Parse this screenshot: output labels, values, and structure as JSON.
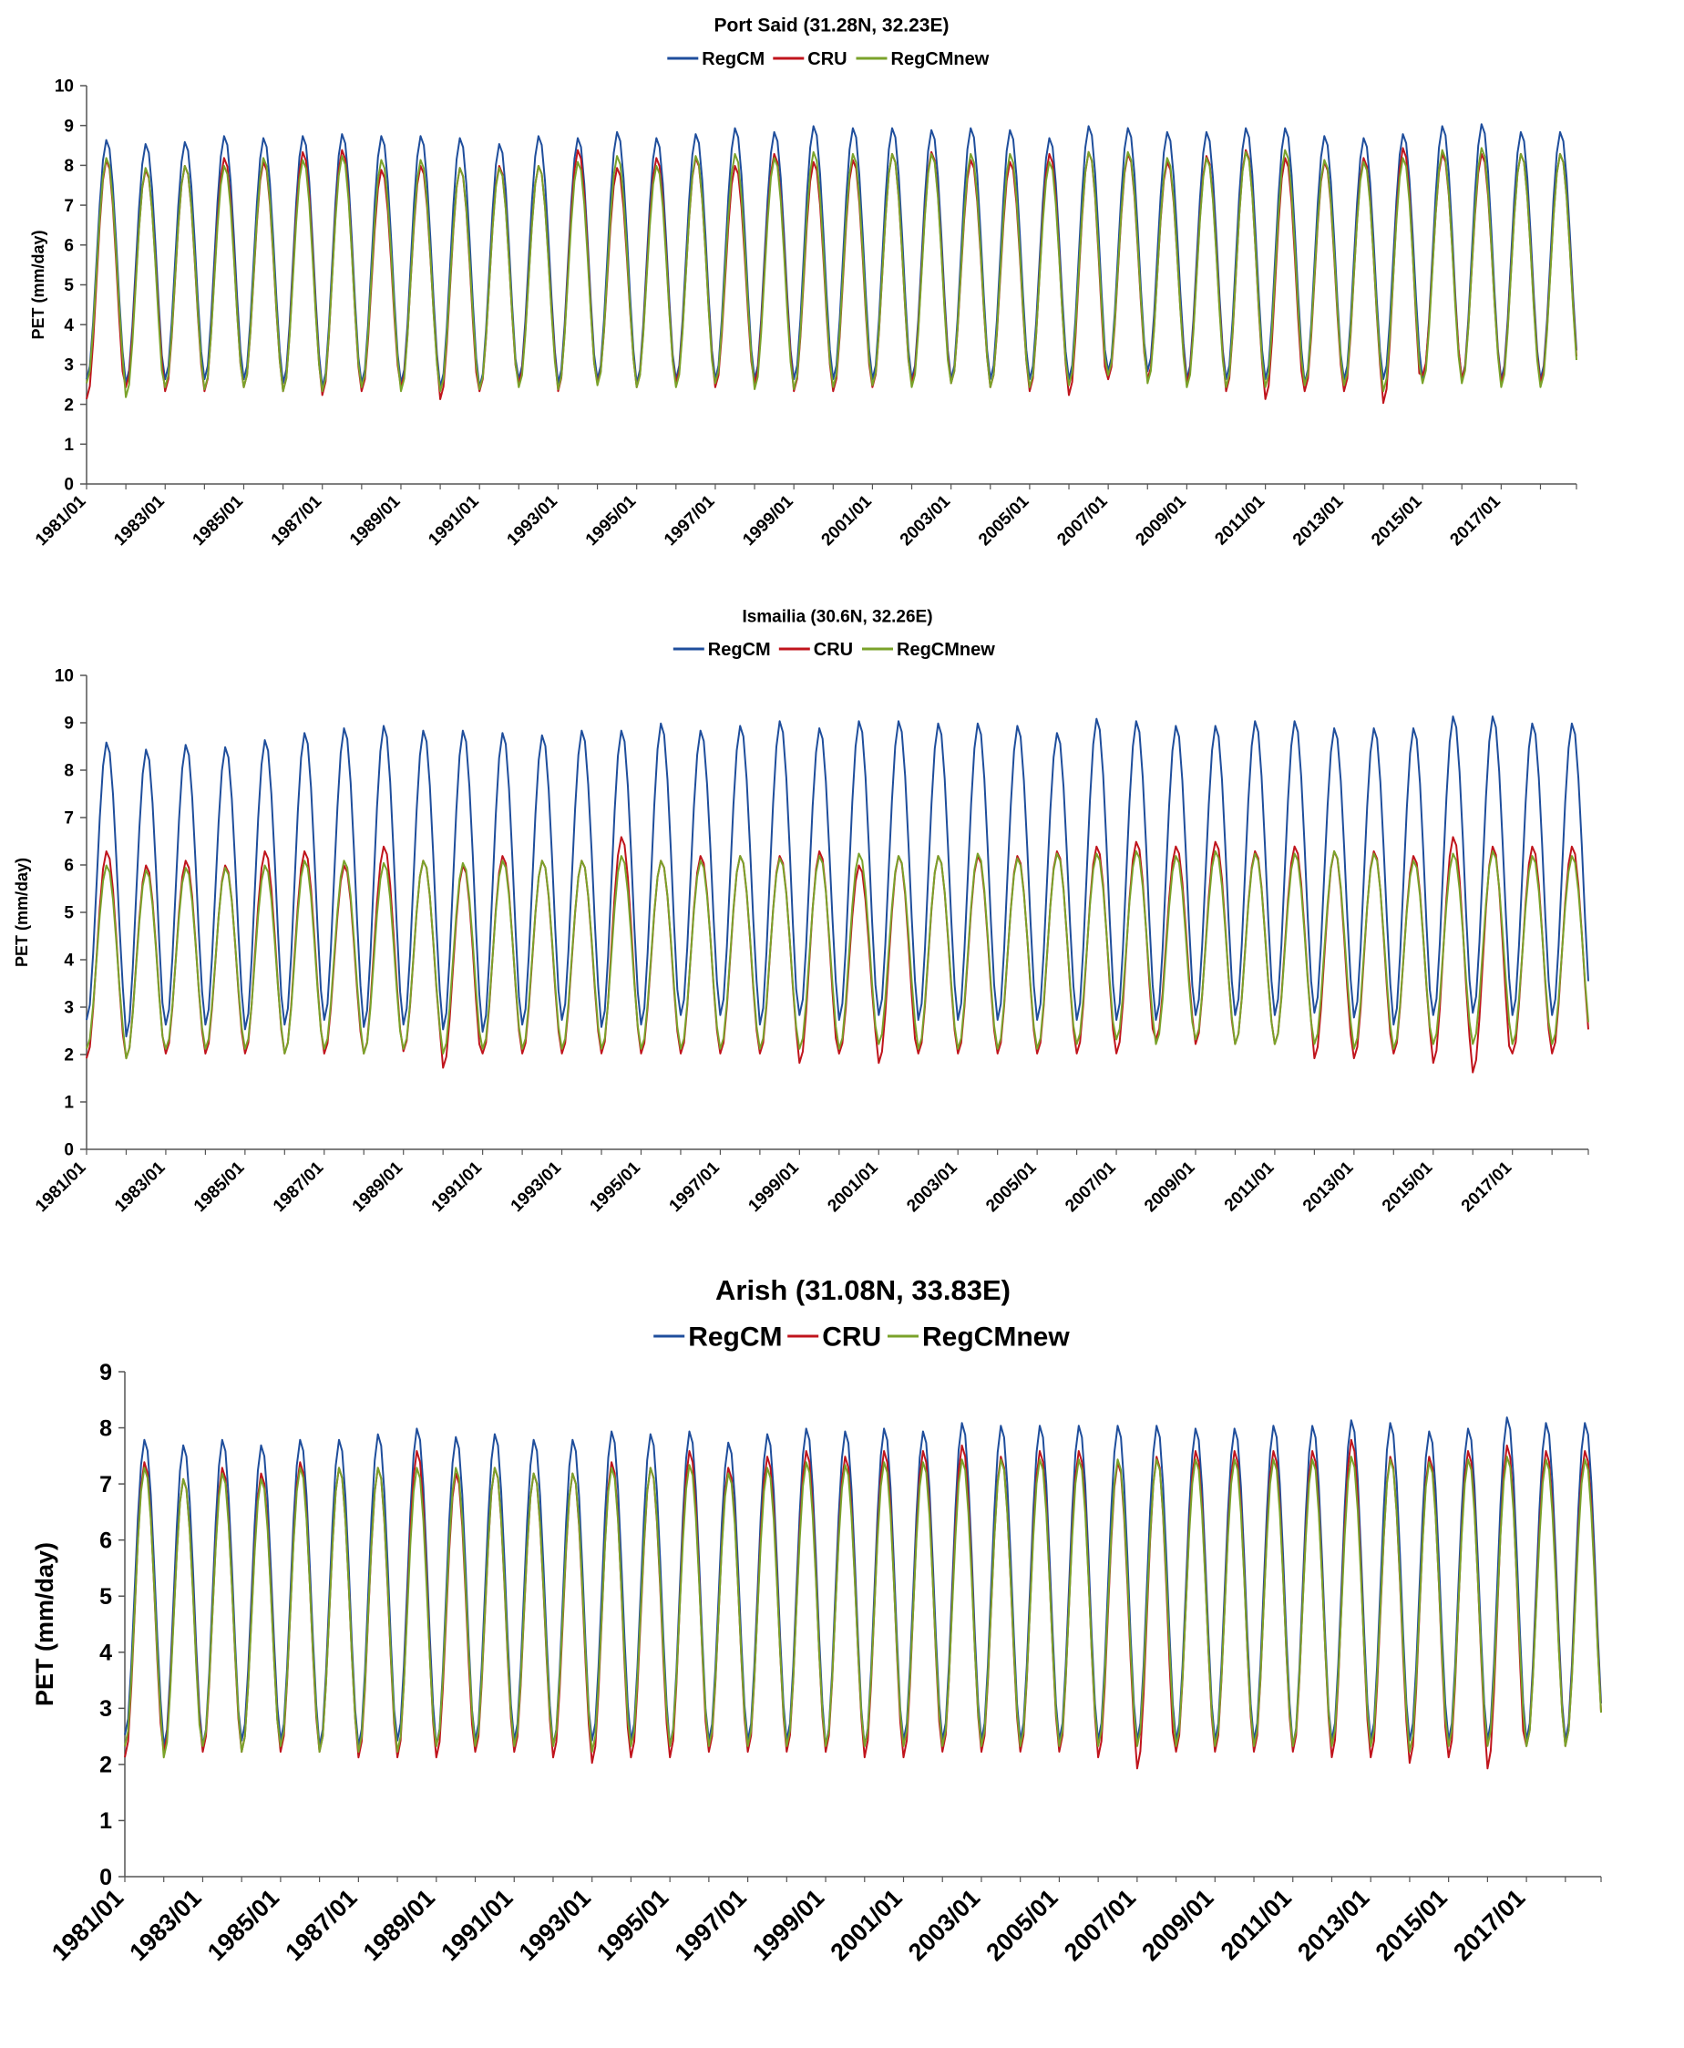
{
  "chart_data": [
    {
      "type": "line",
      "title": "Port Said (31.28N, 32.23E)",
      "xlabel": "",
      "ylabel": "PET (mm/day)",
      "ylim": [
        0,
        10
      ],
      "yticks": [
        0,
        1,
        2,
        3,
        4,
        5,
        6,
        7,
        8,
        9,
        10
      ],
      "x_start": "1981/01",
      "x_end": "2018/12",
      "xtick_labels": [
        "1981/01",
        "1983/01",
        "1985/01",
        "1987/01",
        "1989/01",
        "1991/01",
        "1993/01",
        "1995/01",
        "1997/01",
        "1999/01",
        "2001/01",
        "2003/01",
        "2005/01",
        "2007/01",
        "2009/01",
        "2011/01",
        "2013/01",
        "2015/01",
        "2017/01"
      ],
      "legend_position": "top-center",
      "grid": false,
      "series": [
        {
          "name": "RegCM",
          "color": "#1f4e9c",
          "annual_max": [
            8.65,
            8.55,
            8.6,
            8.75,
            8.7,
            8.75,
            8.8,
            8.75,
            8.75,
            8.7,
            8.55,
            8.75,
            8.7,
            8.85,
            8.7,
            8.8,
            8.95,
            8.85,
            9.0,
            8.95,
            8.95,
            8.9,
            8.95,
            8.9,
            8.7,
            9.0,
            8.95,
            8.85,
            8.85,
            8.95,
            8.95,
            8.75,
            8.7,
            8.8,
            9.0,
            9.05,
            8.85
          ],
          "annual_min": [
            2.6,
            2.5,
            2.6,
            2.6,
            2.6,
            2.5,
            2.4,
            2.5,
            2.5,
            2.4,
            2.4,
            2.6,
            2.5,
            2.6,
            2.5,
            2.6,
            2.6,
            2.6,
            2.6,
            2.6,
            2.6,
            2.6,
            2.6,
            2.6,
            2.6,
            2.6,
            2.8,
            2.8,
            2.6,
            2.6,
            2.6,
            2.5,
            2.6,
            2.6,
            2.6,
            2.6,
            2.6
          ]
        },
        {
          "name": "CRU",
          "color": "#c0141c",
          "annual_max": [
            8.15,
            7.9,
            8.0,
            8.2,
            8.1,
            8.35,
            8.4,
            7.9,
            8.0,
            7.95,
            8.0,
            8.0,
            8.4,
            7.95,
            8.2,
            8.2,
            8.0,
            8.3,
            8.1,
            8.15,
            8.3,
            8.35,
            8.15,
            8.1,
            8.3,
            8.35,
            8.3,
            8.1,
            8.25,
            8.4,
            8.2,
            8.1,
            8.2,
            8.45,
            8.3,
            8.3,
            8.3
          ],
          "annual_min": [
            2.1,
            2.4,
            2.3,
            2.3,
            2.4,
            2.3,
            2.2,
            2.3,
            2.4,
            2.1,
            2.3,
            2.5,
            2.3,
            2.5,
            2.4,
            2.5,
            2.4,
            2.5,
            2.3,
            2.3,
            2.4,
            2.5,
            2.5,
            2.4,
            2.3,
            2.2,
            2.6,
            2.6,
            2.5,
            2.3,
            2.1,
            2.3,
            2.3,
            2.0,
            2.7,
            2.6,
            2.5
          ]
        },
        {
          "name": "RegCMnew",
          "color": "#7aa22a",
          "annual_max": [
            8.2,
            7.95,
            8.0,
            8.0,
            8.2,
            8.15,
            8.25,
            8.15,
            8.15,
            7.95,
            7.95,
            8.0,
            8.1,
            8.25,
            8.0,
            8.25,
            8.3,
            8.2,
            8.35,
            8.3,
            8.3,
            8.3,
            8.3,
            8.3,
            8.1,
            8.35,
            8.35,
            8.2,
            8.2,
            8.35,
            8.4,
            8.15,
            8.1,
            8.2,
            8.4,
            8.45,
            8.3
          ],
          "annual_min": [
            2.5,
            2.15,
            2.4,
            2.35,
            2.4,
            2.3,
            2.3,
            2.4,
            2.3,
            2.3,
            2.35,
            2.4,
            2.35,
            2.45,
            2.4,
            2.4,
            2.5,
            2.35,
            2.35,
            2.4,
            2.45,
            2.4,
            2.5,
            2.4,
            2.4,
            2.45,
            2.7,
            2.5,
            2.4,
            2.4,
            2.4,
            2.45,
            2.45,
            2.3,
            2.5,
            2.5,
            2.4
          ]
        }
      ]
    },
    {
      "type": "line",
      "title": "Ismailia (30.6N, 32.26E)",
      "xlabel": "",
      "ylabel": "PET (mm/day)",
      "ylim": [
        0,
        10
      ],
      "yticks": [
        0,
        1,
        2,
        3,
        4,
        5,
        6,
        7,
        8,
        9,
        10
      ],
      "x_start": "1981/01",
      "x_end": "2018/12",
      "xtick_labels": [
        "1981/01",
        "1983/01",
        "1985/01",
        "1987/01",
        "1989/01",
        "1991/01",
        "1993/01",
        "1995/01",
        "1997/01",
        "1999/01",
        "2001/01",
        "2003/01",
        "2005/01",
        "2007/01",
        "2009/01",
        "2011/01",
        "2013/01",
        "2015/01",
        "2017/01"
      ],
      "legend_position": "top-center",
      "grid": false,
      "series": [
        {
          "name": "RegCM",
          "color": "#1f4e9c",
          "annual_max": [
            8.6,
            8.45,
            8.55,
            8.5,
            8.65,
            8.8,
            8.9,
            8.95,
            8.85,
            8.85,
            8.8,
            8.75,
            8.85,
            8.85,
            9.0,
            8.85,
            8.95,
            9.05,
            8.9,
            9.05,
            9.05,
            9.0,
            9.0,
            8.95,
            8.8,
            9.1,
            9.05,
            8.95,
            8.95,
            9.05,
            9.05,
            8.9,
            8.9,
            8.9,
            9.15,
            9.15,
            9.0
          ],
          "annual_min": [
            2.7,
            2.35,
            2.6,
            2.6,
            2.5,
            2.6,
            2.7,
            2.55,
            2.6,
            2.5,
            2.45,
            2.6,
            2.7,
            2.55,
            2.6,
            2.8,
            2.8,
            2.6,
            2.8,
            2.7,
            2.8,
            2.7,
            2.7,
            2.7,
            2.7,
            2.7,
            2.7,
            2.7,
            2.8,
            2.8,
            2.8,
            2.85,
            2.75,
            2.6,
            2.8,
            2.85,
            2.8
          ]
        },
        {
          "name": "CRU",
          "color": "#c0141c",
          "annual_max": [
            6.3,
            6.0,
            6.1,
            6.0,
            6.3,
            6.3,
            6.0,
            6.4,
            6.1,
            6.0,
            6.2,
            6.1,
            6.1,
            6.6,
            6.1,
            6.2,
            6.2,
            6.2,
            6.3,
            6.0,
            6.2,
            6.2,
            6.2,
            6.2,
            6.3,
            6.4,
            6.5,
            6.4,
            6.5,
            6.3,
            6.4,
            6.3,
            6.3,
            6.2,
            6.6,
            6.4,
            6.4
          ],
          "annual_min": [
            1.9,
            1.9,
            2.0,
            2.0,
            2.0,
            2.0,
            2.0,
            2.0,
            2.05,
            1.7,
            2.0,
            2.0,
            2.0,
            2.0,
            2.0,
            2.0,
            2.0,
            2.0,
            1.8,
            2.0,
            1.8,
            2.0,
            2.0,
            2.0,
            2.0,
            2.0,
            2.0,
            2.3,
            2.2,
            2.2,
            2.2,
            1.9,
            1.9,
            2.0,
            1.8,
            1.6,
            2.0
          ]
        },
        {
          "name": "RegCMnew",
          "color": "#7aa22a",
          "annual_max": [
            6.0,
            5.9,
            5.95,
            5.95,
            6.0,
            6.1,
            6.1,
            6.05,
            6.1,
            6.05,
            6.1,
            6.1,
            6.1,
            6.2,
            6.1,
            6.1,
            6.2,
            6.15,
            6.2,
            6.25,
            6.2,
            6.2,
            6.25,
            6.15,
            6.25,
            6.25,
            6.3,
            6.2,
            6.3,
            6.25,
            6.25,
            6.3,
            6.25,
            6.1,
            6.25,
            6.3,
            6.2
          ],
          "annual_min": [
            2.1,
            1.9,
            2.1,
            2.1,
            2.1,
            2.0,
            2.1,
            2.0,
            2.1,
            2.0,
            2.1,
            2.1,
            2.1,
            2.1,
            2.1,
            2.1,
            2.1,
            2.1,
            2.1,
            2.1,
            2.2,
            2.1,
            2.1,
            2.1,
            2.1,
            2.2,
            2.3,
            2.2,
            2.3,
            2.2,
            2.2,
            2.2,
            2.1,
            2.1,
            2.2,
            2.2,
            2.2
          ]
        }
      ]
    },
    {
      "type": "line",
      "title": "Arish (31.08N, 33.83E)",
      "xlabel": "",
      "ylabel": "PET (mm/day)",
      "ylim": [
        0,
        9
      ],
      "yticks": [
        0,
        1,
        2,
        3,
        4,
        5,
        6,
        7,
        8,
        9
      ],
      "x_start": "1981/01",
      "x_end": "2018/12",
      "xtick_labels": [
        "1981/01",
        "1983/01",
        "1985/01",
        "1987/01",
        "1989/01",
        "1991/01",
        "1993/01",
        "1995/01",
        "1997/01",
        "1999/01",
        "2001/01",
        "2003/01",
        "2005/01",
        "2007/01",
        "2009/01",
        "2011/01",
        "2013/01",
        "2015/01",
        "2017/01"
      ],
      "legend_position": "top-center",
      "grid": false,
      "series": [
        {
          "name": "RegCM",
          "color": "#1f4e9c",
          "annual_max": [
            7.8,
            7.7,
            7.8,
            7.7,
            7.8,
            7.8,
            7.9,
            8.0,
            7.85,
            7.9,
            7.8,
            7.8,
            7.95,
            7.9,
            7.95,
            7.75,
            7.9,
            8.0,
            7.95,
            8.0,
            7.95,
            8.1,
            8.05,
            8.05,
            8.05,
            8.05,
            8.05,
            8.0,
            8.0,
            8.05,
            8.05,
            8.15,
            8.1,
            7.95,
            8.0,
            8.2,
            8.1
          ],
          "annual_min": [
            2.5,
            2.3,
            2.3,
            2.4,
            2.4,
            2.3,
            2.3,
            2.4,
            2.3,
            2.4,
            2.4,
            2.3,
            2.4,
            2.4,
            2.3,
            2.4,
            2.4,
            2.4,
            2.3,
            2.3,
            2.4,
            2.4,
            2.4,
            2.4,
            2.4,
            2.4,
            2.4,
            2.4,
            2.4,
            2.4,
            2.3,
            2.4,
            2.4,
            2.4,
            2.4,
            2.4,
            2.4
          ]
        },
        {
          "name": "CRU",
          "color": "#c0141c",
          "annual_max": [
            7.4,
            7.1,
            7.3,
            7.2,
            7.4,
            7.3,
            7.3,
            7.6,
            7.2,
            7.3,
            7.2,
            7.2,
            7.4,
            7.3,
            7.6,
            7.3,
            7.5,
            7.6,
            7.5,
            7.6,
            7.6,
            7.7,
            7.5,
            7.6,
            7.6,
            7.4,
            7.5,
            7.6,
            7.6,
            7.6,
            7.6,
            7.8,
            7.5,
            7.5,
            7.6,
            7.7,
            7.6
          ],
          "annual_min": [
            2.1,
            2.2,
            2.2,
            2.2,
            2.2,
            2.2,
            2.1,
            2.1,
            2.1,
            2.2,
            2.2,
            2.1,
            2.0,
            2.1,
            2.1,
            2.2,
            2.2,
            2.2,
            2.2,
            2.1,
            2.1,
            2.2,
            2.2,
            2.2,
            2.2,
            2.1,
            1.9,
            2.2,
            2.2,
            2.2,
            2.2,
            2.1,
            2.1,
            2.0,
            2.1,
            1.9,
            2.3
          ]
        },
        {
          "name": "RegCMnew",
          "color": "#7aa22a",
          "annual_max": [
            7.3,
            7.1,
            7.2,
            7.1,
            7.3,
            7.3,
            7.3,
            7.3,
            7.3,
            7.3,
            7.2,
            7.2,
            7.3,
            7.3,
            7.35,
            7.2,
            7.3,
            7.4,
            7.35,
            7.4,
            7.4,
            7.45,
            7.45,
            7.45,
            7.45,
            7.45,
            7.45,
            7.45,
            7.45,
            7.45,
            7.45,
            7.5,
            7.45,
            7.4,
            7.45,
            7.5,
            7.45
          ],
          "annual_min": [
            2.3,
            2.1,
            2.3,
            2.2,
            2.3,
            2.2,
            2.2,
            2.2,
            2.3,
            2.3,
            2.3,
            2.3,
            2.2,
            2.3,
            2.3,
            2.3,
            2.3,
            2.3,
            2.3,
            2.3,
            2.3,
            2.3,
            2.3,
            2.3,
            2.3,
            2.3,
            2.3,
            2.3,
            2.3,
            2.3,
            2.3,
            2.3,
            2.3,
            2.2,
            2.3,
            2.3,
            2.3
          ]
        }
      ]
    }
  ]
}
